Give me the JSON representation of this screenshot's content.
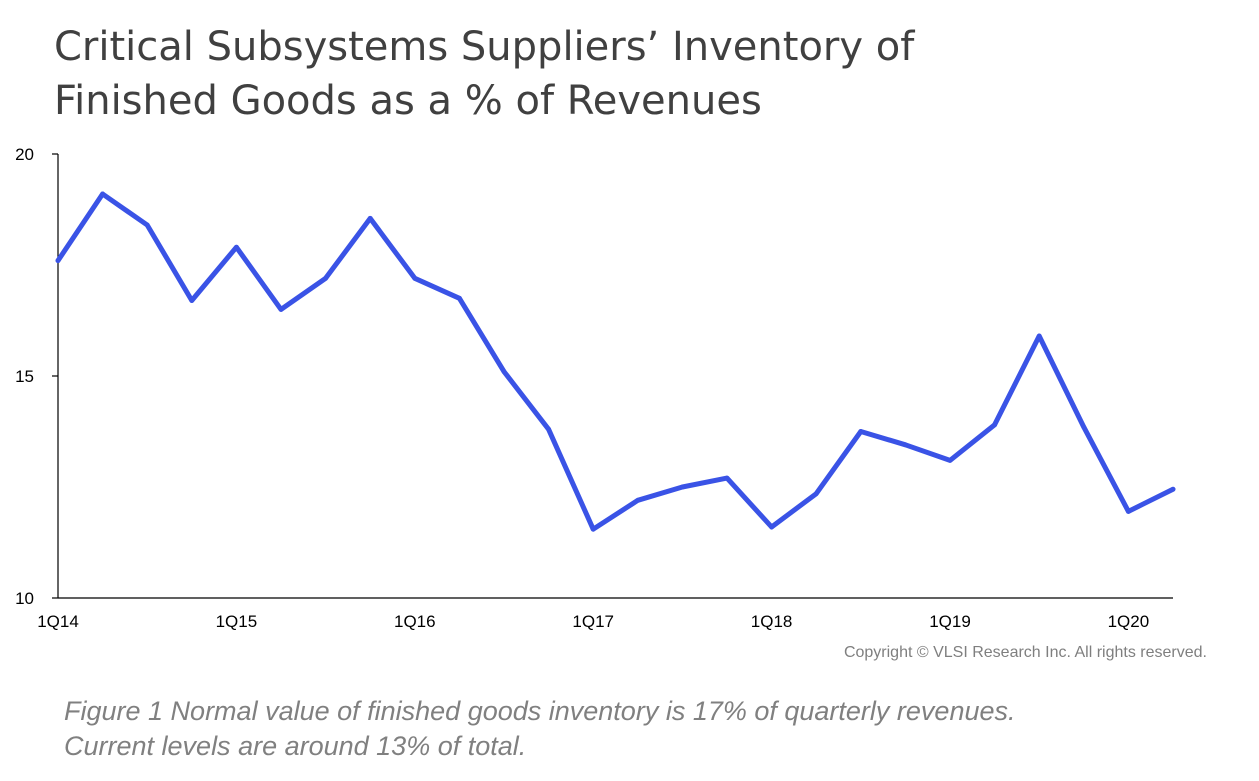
{
  "chart_data": {
    "type": "line",
    "title_lines": [
      "Critical Subsystems Suppliers’ Inventory of",
      "Finished Goods as a % of Revenues"
    ],
    "xlabel": "",
    "ylabel": "",
    "x": [
      "1Q14",
      "2Q14",
      "3Q14",
      "4Q14",
      "1Q15",
      "2Q15",
      "3Q15",
      "4Q15",
      "1Q16",
      "2Q16",
      "3Q16",
      "4Q16",
      "1Q17",
      "2Q17",
      "3Q17",
      "4Q17",
      "1Q18",
      "2Q18",
      "3Q18",
      "4Q18",
      "1Q19",
      "2Q19",
      "3Q19",
      "4Q19",
      "1Q20",
      "2Q20"
    ],
    "x_tick_labels": [
      "1Q14",
      "1Q15",
      "1Q16",
      "1Q17",
      "1Q18",
      "1Q19",
      "1Q20"
    ],
    "y_ticks": [
      10,
      15,
      20
    ],
    "ylim": [
      10,
      20
    ],
    "grid": false,
    "series": [
      {
        "color": "#3a53e6",
        "values": [
          17.6,
          19.1,
          18.4,
          16.7,
          17.9,
          16.5,
          17.2,
          18.55,
          17.2,
          16.75,
          15.1,
          13.8,
          11.55,
          12.2,
          12.5,
          12.7,
          11.6,
          12.35,
          13.75,
          13.45,
          13.1,
          13.9,
          15.9,
          13.85,
          11.95,
          12.45
        ]
      }
    ]
  },
  "copyright": "Copyright ©  VLSI Research Inc.  All rights reserved.",
  "caption": "Figure 1 Normal value of finished goods inventory is 17% of quarterly revenues. Current levels are around 13% of total."
}
